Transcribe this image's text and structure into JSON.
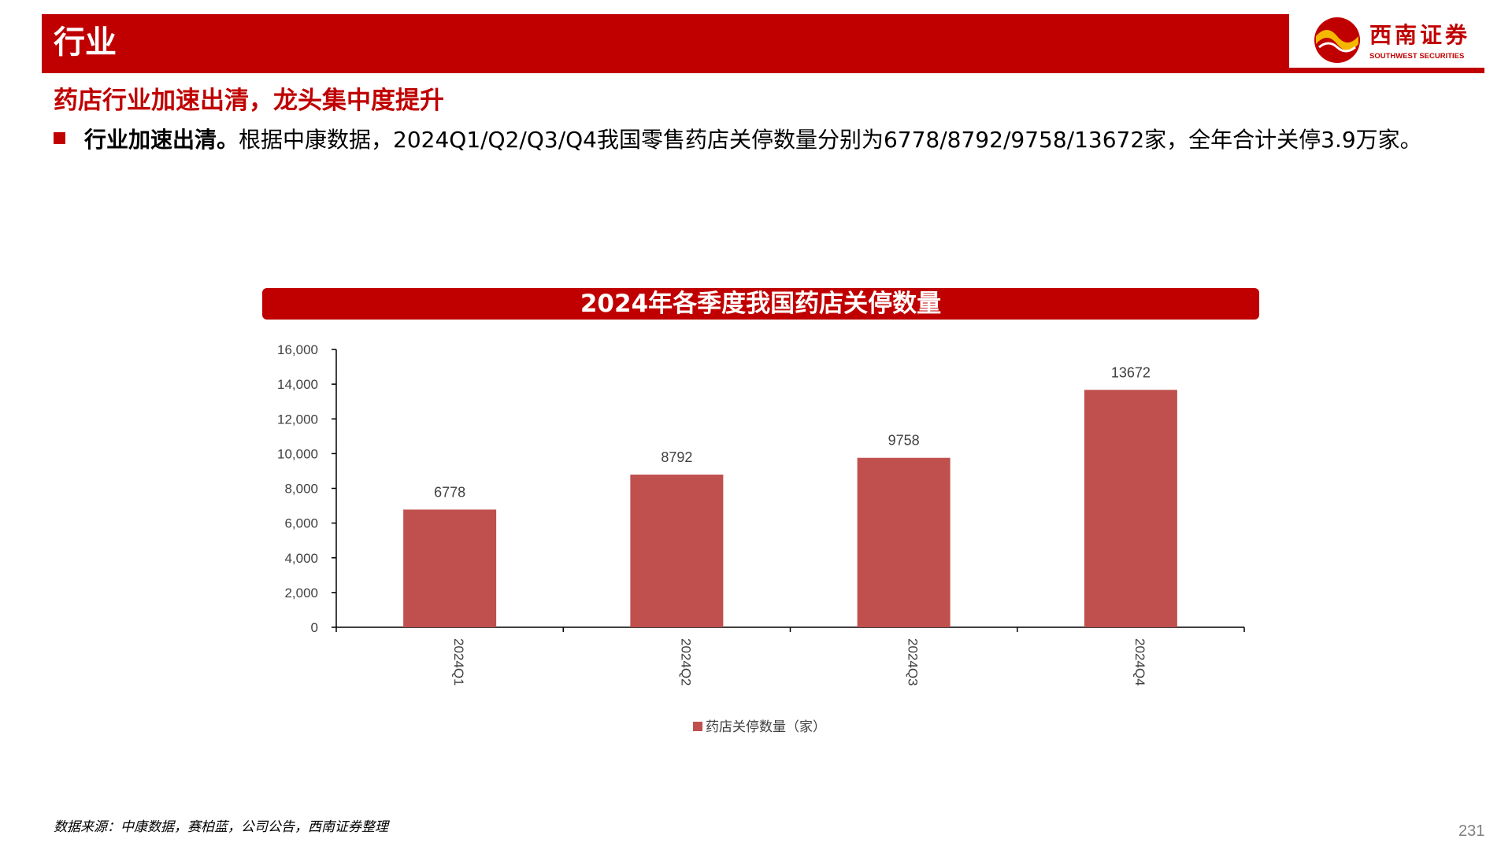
{
  "header": {
    "title": "行业"
  },
  "logo": {
    "name_cn": "西南证券",
    "name_en": "SOUTHWEST SECURITIES"
  },
  "subtitle": "药店行业加速出清，龙头集中度提升",
  "bullet": {
    "bold": "行业加速出清。",
    "text": "根据中康数据，2024Q1/Q2/Q3/Q4我国零售药店关停数量分别为6778/8792/9758/13672家，全年合计关停3.9万家。"
  },
  "chart_data": {
    "type": "bar",
    "title": "2024年各季度我国药店关停数量",
    "categories": [
      "2024Q1",
      "2024Q2",
      "2024Q3",
      "2024Q4"
    ],
    "series": [
      {
        "name": "药店关停数量（家）",
        "values": [
          6778,
          8792,
          9758,
          13672
        ]
      }
    ],
    "y_ticks": [
      "0",
      "2,000",
      "4,000",
      "6,000",
      "8,000",
      "10,000",
      "12,000",
      "14,000",
      "16,000"
    ],
    "ylim": [
      0,
      16000
    ],
    "grid": false,
    "legend": "bottom-center",
    "bar_color": "#c0504d"
  },
  "footer": {
    "source": "数据来源：中康数据，赛柏蓝，公司公告，西南证券整理"
  },
  "page_number": "231"
}
